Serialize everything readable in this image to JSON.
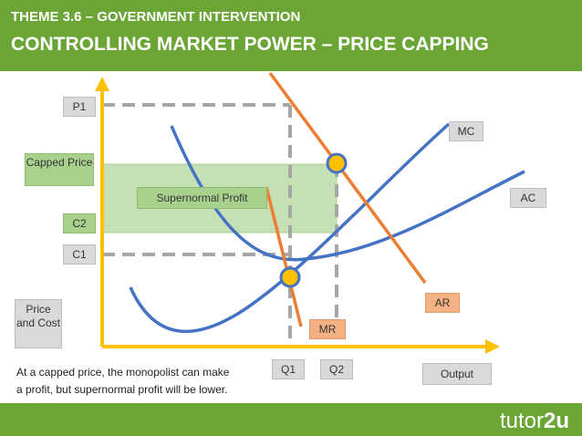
{
  "header": {
    "theme": "THEME 3.6 – GOVERNMENT INTERVENTION",
    "title": "CONTROLLING MARKET POWER – PRICE CAPPING"
  },
  "labels": {
    "p1": "P1",
    "capped_price": "Capped Price",
    "c2": "C2",
    "c1": "C1",
    "price_cost": "Price and Cost",
    "supernormal": "Supernormal Profit",
    "mc": "MC",
    "ac": "AC",
    "ar": "AR",
    "mr": "MR",
    "q1": "Q1",
    "q2": "Q2",
    "output": "Output"
  },
  "caption": {
    "line1": "At a capped price, the monopolist can make",
    "line2": "a profit, but supernormal profit will be lower."
  },
  "footer": {
    "logo_text": "tutor",
    "logo_accent": "2u"
  },
  "colors": {
    "brand_green": "#6aa536",
    "axis": "#ffc000",
    "curve_blue": "#4472c4",
    "curve_orange": "#ed7d31",
    "profit_area": "#c5e0b4",
    "dashed": "#a6a6a6",
    "marker": "#ffc000"
  }
}
